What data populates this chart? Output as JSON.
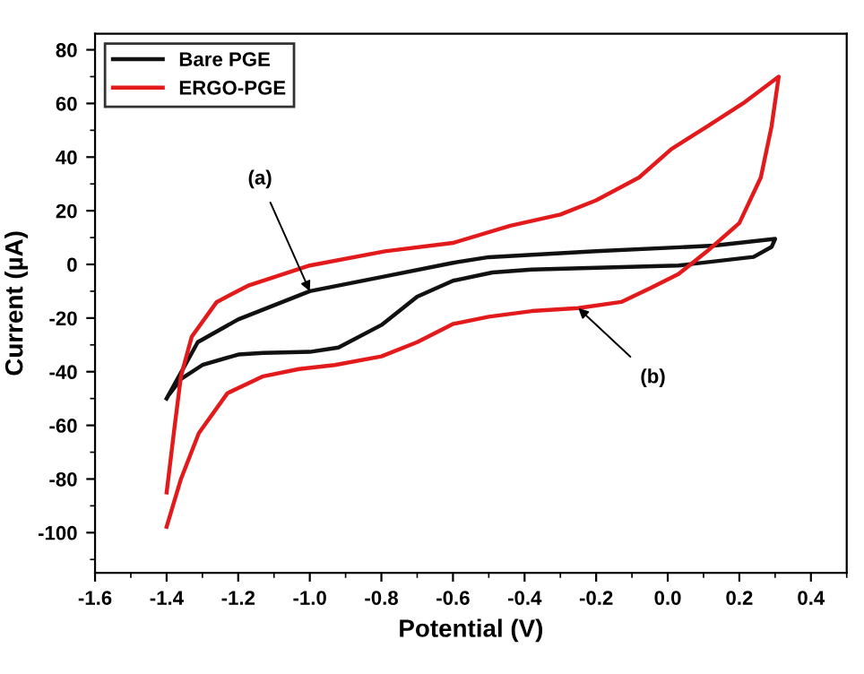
{
  "chart_data": {
    "type": "line",
    "xlabel": "Potential (V)",
    "ylabel": "Current (µA)",
    "xlim": [
      -1.6,
      0.5
    ],
    "ylim": [
      -115,
      86
    ],
    "xticks": [
      -1.6,
      -1.4,
      -1.2,
      {
        "value": -1,
        "label": "-1.0"
      },
      -0.8,
      -0.6,
      -0.4,
      -0.2,
      {
        "value": 0,
        "label": "0.0"
      },
      0.2,
      0.4
    ],
    "yticks": [
      -100,
      -80,
      -60,
      -40,
      -20,
      0,
      20,
      40,
      60,
      80
    ],
    "legend": "top left",
    "grid": false,
    "marker": "none",
    "line_style": "solid",
    "series": [
      {
        "name": "Bare PGE",
        "color": "#111111",
        "x": [
          -1.4,
          -1.313,
          -1.2,
          -1.0,
          -0.8,
          -0.6,
          -0.5,
          -0.2,
          0.13,
          0.3,
          0.29,
          0.24,
          0.03,
          -0.38,
          -0.49,
          -0.6,
          -0.7,
          -0.8,
          -0.92,
          -1.0,
          -1.13,
          -1.2,
          -1.3,
          -1.36,
          -1.39
        ],
        "values": [
          -50,
          -29,
          -20.5,
          -10,
          -4.7,
          0.6,
          2.7,
          4.9,
          7,
          9.5,
          6.5,
          2.8,
          -0.4,
          -1.9,
          -3,
          -6.1,
          -12,
          -22.6,
          -31,
          -32.6,
          -33,
          -33.6,
          -37.5,
          -42.7,
          -48
        ]
      },
      {
        "name": "ERGO-PGE",
        "color": "#e31a1c",
        "x": [
          -1.4,
          -1.38,
          -1.36,
          -1.33,
          -1.26,
          -1.17,
          -1.0,
          -0.79,
          -0.6,
          -0.44,
          -0.3,
          -0.2,
          -0.08,
          0.01,
          0.11,
          0.21,
          0.31,
          0.29,
          0.26,
          0.2,
          0.11,
          0.03,
          -0.05,
          -0.13,
          -0.25,
          -0.38,
          -0.5,
          -0.6,
          -0.7,
          -0.8,
          -0.93,
          -1.03,
          -1.13,
          -1.23,
          -1.31,
          -1.36,
          -1.4
        ],
        "values": [
          -85,
          -63,
          -41.7,
          -27,
          -14,
          -7.8,
          -0.4,
          4.9,
          8,
          14.4,
          18.6,
          23.9,
          32.4,
          43,
          51.4,
          60,
          70,
          51.4,
          32.4,
          15.4,
          4.9,
          -3.6,
          -8.9,
          -14,
          -16.3,
          -17.4,
          -19.5,
          -22.2,
          -29,
          -34.3,
          -37.5,
          -39,
          -41.7,
          -48,
          -62.9,
          -80,
          -97.8
        ]
      }
    ],
    "annotations": [
      {
        "text": "(a)",
        "x": -1.0,
        "y": -10
      },
      {
        "text": "(b)",
        "x": -0.25,
        "y": -16.3
      }
    ]
  }
}
